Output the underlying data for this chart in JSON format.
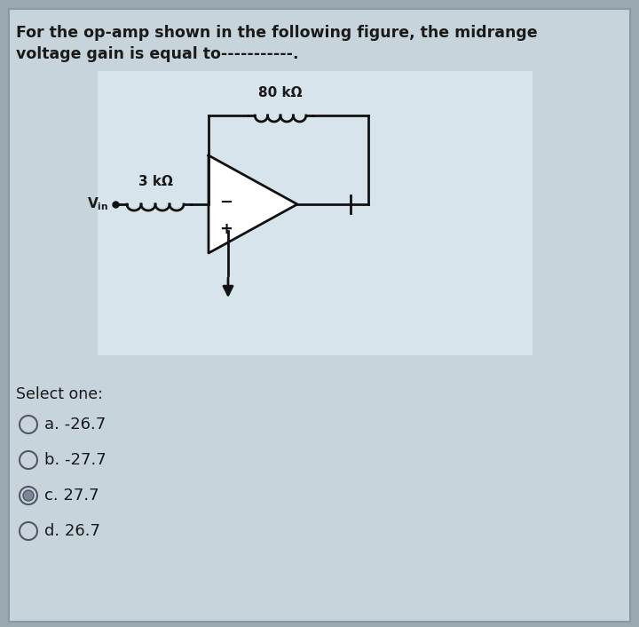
{
  "question_line1": "For the op-amp shown in the following figure, the midrange",
  "question_line2": "voltage gain is equal to-----------.",
  "select_one": "Select one:",
  "options": [
    {
      "label": "a. -26.7",
      "selected": false
    },
    {
      "label": "b. -27.7",
      "selected": false
    },
    {
      "label": "c. 27.7",
      "selected": true
    },
    {
      "label": "d. 26.7",
      "selected": false
    }
  ],
  "r_feedback": "80 kΩ",
  "r_input": "3 kΩ",
  "vin_label": "Vin",
  "page_bg": "#9aa8b0",
  "box_bg": "#c8d4dc",
  "circuit_bg": "#d8e4ec",
  "text_color": "#1a1a1a",
  "figure_width": 7.2,
  "figure_height": 7.06
}
